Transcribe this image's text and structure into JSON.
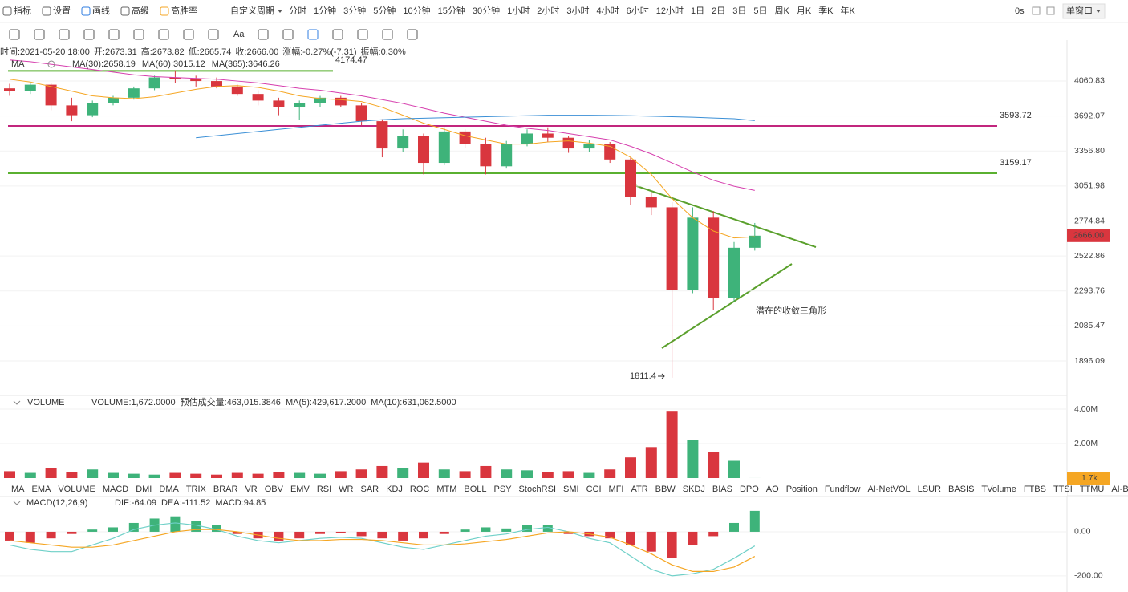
{
  "ui": {
    "toolbar": [
      "指标",
      "设置",
      "画线",
      "高级",
      "高胜率"
    ],
    "custom_period": "自定义周期",
    "periods": [
      "分时",
      "1分钟",
      "3分钟",
      "5分钟",
      "10分钟",
      "15分钟",
      "30分钟",
      "1小时",
      "2小时",
      "3小时",
      "4小时",
      "6小时",
      "12小时",
      "1日",
      "2日",
      "3日",
      "5日",
      "周K",
      "月K",
      "季K",
      "年K"
    ],
    "active_period": 7,
    "timer": "0s",
    "window": "单窗口",
    "text_tool": "Aa",
    "indicator_tabs": [
      "MA",
      "EMA",
      "VOLUME",
      "MACD",
      "DMI",
      "DMA",
      "TRIX",
      "BRAR",
      "VR",
      "OBV",
      "EMV",
      "RSI",
      "WR",
      "SAR",
      "KDJ",
      "ROC",
      "MTM",
      "BOLL",
      "PSY",
      "StochRSI",
      "SMI",
      "CCI",
      "MFI",
      "ATR",
      "BBW",
      "SKDJ",
      "BIAS",
      "DPO",
      "AO",
      "Position",
      "Fundflow",
      "AI-NetVOL",
      "LSUR",
      "BASIS",
      "TVolume",
      "FTBS",
      "TTSI",
      "TTMU",
      "AI-BSI"
    ],
    "active_tab": 2,
    "faded_from": 30
  },
  "chart_data": [
    {
      "type": "candlestick",
      "info": [
        "时间:2021-05-20 18:00",
        "开:2673.31",
        "高:2673.82",
        "低:2665.74",
        "收:2666.00",
        "涨幅:-0.27%(-7.31)",
        "振幅:0.30%"
      ],
      "legend_group": "MA",
      "log_scale": true,
      "ylim": [
        1730,
        4460
      ],
      "yticks": [
        4060.83,
        3692.07,
        {
          "value": 3356.8,
          "label": "3356.80"
        },
        3051.98,
        2774.84,
        2522.86,
        2293.76,
        2085.47,
        1896.09
      ],
      "up_color": "#3eb37a",
      "down_color": "#d9363e",
      "open": [
        3980,
        3950,
        4020,
        3800,
        3700,
        3820,
        3880,
        3980,
        4100,
        4080,
        4060,
        4000,
        3920,
        3850,
        3780,
        3820,
        3880,
        3800,
        3640,
        3380,
        3500,
        3250,
        3540,
        3420,
        3220,
        3420,
        3520,
        3480,
        3380,
        3420,
        3280,
        2960,
        2880,
        2300,
        2800,
        2250,
        2580
      ],
      "high": [
        4030,
        4050,
        4040,
        3880,
        3850,
        3900,
        4000,
        4120,
        4180,
        4120,
        4100,
        4020,
        3960,
        3880,
        3850,
        3900,
        3900,
        3820,
        3660,
        3560,
        3520,
        3580,
        3560,
        3480,
        3450,
        3560,
        3580,
        3500,
        3460,
        3440,
        3300,
        3000,
        2920,
        2880,
        2850,
        2620,
        2760
      ],
      "low": [
        3900,
        3920,
        3750,
        3640,
        3680,
        3800,
        3860,
        3960,
        4040,
        4000,
        3980,
        3900,
        3800,
        3700,
        3650,
        3780,
        3780,
        3600,
        3300,
        3350,
        3150,
        3230,
        3380,
        3150,
        3200,
        3400,
        3440,
        3340,
        3350,
        3250,
        2900,
        2820,
        1811.4,
        2280,
        2180,
        2230,
        2560
      ],
      "close": [
        3950,
        4020,
        3800,
        3700,
        3820,
        3880,
        3980,
        4100,
        4080,
        4060,
        4000,
        3920,
        3850,
        3780,
        3820,
        3880,
        3800,
        3640,
        3380,
        3500,
        3250,
        3540,
        3420,
        3220,
        3420,
        3520,
        3480,
        3380,
        3420,
        3280,
        2960,
        2880,
        2300,
        2800,
        2250,
        2580,
        2666
      ],
      "last_price_label": "2666.00",
      "series": [
        {
          "name": "MA(30):2658.19",
          "color": "#f5a623",
          "values": [
            4080,
            4050,
            4000,
            3950,
            3900,
            3880,
            3870,
            3890,
            3930,
            3970,
            4000,
            4010,
            3990,
            3950,
            3900,
            3870,
            3860,
            3840,
            3780,
            3700,
            3620,
            3560,
            3500,
            3460,
            3420,
            3420,
            3440,
            3450,
            3430,
            3400,
            3300,
            3150,
            2950,
            2800,
            2700,
            2650,
            2658.19
          ]
        },
        {
          "name": "MA(60):3015.12",
          "color": "#d63fae",
          "values": [
            4300,
            4280,
            4250,
            4220,
            4190,
            4160,
            4130,
            4110,
            4100,
            4090,
            4080,
            4060,
            4040,
            4010,
            3980,
            3960,
            3930,
            3900,
            3860,
            3820,
            3770,
            3720,
            3680,
            3640,
            3600,
            3570,
            3550,
            3520,
            3490,
            3460,
            3400,
            3330,
            3250,
            3170,
            3100,
            3050,
            3015.12
          ]
        },
        {
          "name": "MA(365):3646.26",
          "color": "#3a8fd6",
          "values": [
            null,
            null,
            null,
            null,
            null,
            null,
            null,
            null,
            null,
            3480,
            3500,
            3520,
            3540,
            3560,
            3580,
            3600,
            3620,
            3640,
            3655,
            3665,
            3670,
            3675,
            3680,
            3685,
            3690,
            3695,
            3700,
            3700,
            3700,
            3698,
            3695,
            3690,
            3685,
            3680,
            3672,
            3665,
            3646.26
          ]
        }
      ],
      "hlines": [
        {
          "value": 4174.47,
          "color": "#5ab030"
        },
        {
          "value": 3593.72,
          "color": "#c2267e"
        },
        {
          "value": 3159.17,
          "color": "#5ab030"
        }
      ],
      "annotation": "潜在的收敛三角形"
    },
    {
      "type": "bar",
      "title": "VOLUME",
      "legend": [
        "VOLUME:1,672.0000",
        "预估成交量:463,015.3846",
        "MA(5):429,617.2000",
        "MA(10):631,062.5000"
      ],
      "ylim": [
        0,
        4700000
      ],
      "yticks": [
        {
          "value": 4000000,
          "label": "4.00M"
        },
        {
          "value": 2000000,
          "label": "2.00M"
        }
      ],
      "values": [
        400000,
        300000,
        600000,
        350000,
        500000,
        300000,
        250000,
        200000,
        300000,
        250000,
        200000,
        300000,
        250000,
        350000,
        300000,
        250000,
        400000,
        500000,
        700000,
        600000,
        900000,
        500000,
        400000,
        700000,
        500000,
        450000,
        350000,
        400000,
        300000,
        500000,
        1200000,
        1800000,
        3900000,
        2200000,
        1500000,
        1000000,
        1672
      ],
      "current_label": "1.7k"
    },
    {
      "type": "macd",
      "title": "MACD(12,26,9)",
      "legend": [
        "DIF:-64.09",
        "DEA:-111.52",
        "MACD:94.85"
      ],
      "ylim": [
        -244,
        149
      ],
      "yticks": [
        {
          "value": 0,
          "label": "0.00"
        },
        {
          "value": -200,
          "label": "-200.00"
        }
      ],
      "up_color": "#3eb37a",
      "down_color": "#d9363e",
      "values": [
        -40,
        -50,
        -30,
        -10,
        10,
        20,
        40,
        60,
        70,
        50,
        30,
        -10,
        -30,
        -40,
        -30,
        -10,
        -5,
        -20,
        -30,
        -40,
        -30,
        -10,
        10,
        20,
        15,
        30,
        30,
        -10,
        -20,
        -30,
        -60,
        -90,
        -120,
        -60,
        -20,
        40,
        94.85
      ],
      "series": [
        {
          "name": "DIF",
          "color": "#6fd0c8",
          "values": [
            -60,
            -80,
            -90,
            -90,
            -60,
            -30,
            10,
            30,
            40,
            30,
            10,
            -20,
            -40,
            -50,
            -40,
            -30,
            -25,
            -30,
            -50,
            -70,
            -80,
            -60,
            -40,
            -20,
            -10,
            10,
            20,
            0,
            -30,
            -50,
            -110,
            -170,
            -200,
            -190,
            -170,
            -120,
            -64.09
          ]
        },
        {
          "name": "DEA",
          "color": "#f5a623",
          "values": [
            -40,
            -50,
            -60,
            -70,
            -70,
            -60,
            -40,
            -20,
            0,
            10,
            10,
            0,
            -15,
            -30,
            -40,
            -40,
            -35,
            -35,
            -40,
            -50,
            -60,
            -60,
            -55,
            -45,
            -35,
            -20,
            -5,
            0,
            -10,
            -25,
            -60,
            -100,
            -150,
            -180,
            -180,
            -160,
            -111.52
          ]
        }
      ]
    }
  ]
}
